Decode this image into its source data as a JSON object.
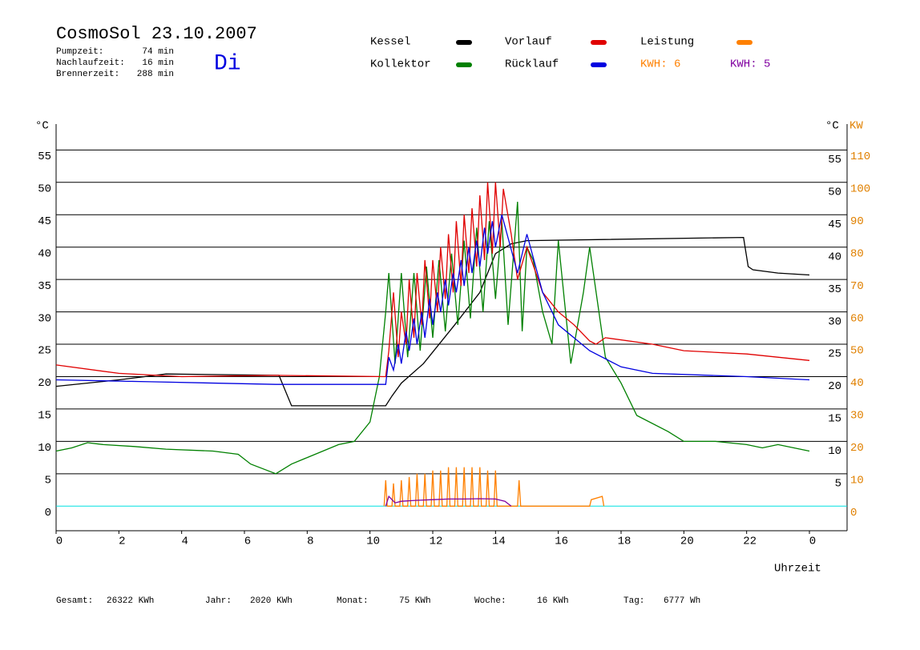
{
  "header": {
    "title": "CosmoSol 23.10.2007",
    "day": "Di",
    "stats": [
      {
        "label": "Pumpzeit:",
        "value": "74 min"
      },
      {
        "label": "Nachlaufzeit:",
        "value": "16 min"
      },
      {
        "label": "Brennerzeit:",
        "value": "288 min"
      }
    ]
  },
  "footer": [
    {
      "label": "Gesamt:",
      "value": "26322 KWh"
    },
    {
      "label": "Jahr:",
      "value": "2020 KWh"
    },
    {
      "label": "Monat:",
      "value": "75 KWh"
    },
    {
      "label": "Woche:",
      "value": "16 KWh"
    },
    {
      "label": "Tag:",
      "value": "6777 Wh"
    }
  ],
  "chart_data": {
    "type": "line",
    "y_unit_left": "°C",
    "y_unit_right": "°C",
    "y2_unit": "KW",
    "xlabel": "Uhrzeit",
    "xlim": [
      0,
      25.2
    ],
    "xticks": [
      0,
      2,
      4,
      6,
      8,
      10,
      12,
      14,
      16,
      18,
      20,
      22,
      {
        "value": 24,
        "label": "0"
      }
    ],
    "ylim": [
      -3.8,
      59
    ],
    "yticks": [
      0,
      5,
      10,
      15,
      20,
      25,
      30,
      35,
      40,
      45,
      50,
      55
    ],
    "y_right_ticks": [
      5,
      10,
      15,
      20,
      25,
      30,
      35,
      40,
      45,
      50,
      55
    ],
    "y2lim": [
      -7.6,
      118
    ],
    "y2ticks": [
      0,
      10,
      20,
      30,
      40,
      50,
      60,
      70,
      80,
      90,
      100,
      110
    ],
    "grid": true,
    "baseline_color": "#00e0e0",
    "series": [
      {
        "name": "Kessel",
        "color": "#000000",
        "x": [
          0,
          2,
          3.5,
          7.1,
          7.5,
          10.5,
          10.7,
          11,
          11.7,
          12.7,
          13.5,
          14,
          14.5,
          15,
          21.9,
          22.05,
          22.2,
          23,
          24
        ],
        "values": [
          18.5,
          19.5,
          20.4,
          20.2,
          15.5,
          15.5,
          17,
          19,
          22,
          28,
          33,
          39,
          40.5,
          41,
          41.5,
          37,
          36.5,
          36,
          35.7
        ]
      },
      {
        "name": "Kollektor",
        "color": "#008000",
        "x": [
          0,
          0.5,
          1,
          1.5,
          2.5,
          3.5,
          5,
          5.8,
          6.2,
          7,
          7.5,
          8,
          9,
          9.5,
          10,
          10.3,
          10.5,
          10.6,
          10.8,
          11,
          11.2,
          11.4,
          11.6,
          11.8,
          12,
          12.2,
          12.4,
          12.6,
          12.8,
          13,
          13.2,
          13.4,
          13.6,
          13.8,
          14,
          14.2,
          14.4,
          14.7,
          14.85,
          15,
          15.2,
          15.5,
          15.8,
          16,
          16.4,
          16.8,
          17,
          17.5,
          18,
          18.5,
          19.5,
          20,
          21,
          22,
          22.5,
          23,
          24
        ],
        "values": [
          8.5,
          9,
          9.8,
          9.5,
          9.2,
          8.8,
          8.5,
          8,
          6.5,
          5,
          6.5,
          7.5,
          9.5,
          10,
          13,
          20,
          30,
          36,
          22,
          36,
          23,
          36,
          24,
          37,
          26,
          38,
          27,
          39,
          28,
          41,
          29,
          43,
          30,
          44,
          32,
          44,
          28,
          47,
          27,
          40,
          38,
          30,
          25,
          41,
          22,
          33,
          40,
          23,
          19,
          14,
          11.5,
          10,
          10,
          9.5,
          9,
          9.5,
          8.5
        ]
      },
      {
        "name": "Vorlauf",
        "color": "#e00000",
        "x": [
          0,
          2,
          4,
          7,
          10.5,
          10.6,
          10.75,
          10.9,
          11,
          11.15,
          11.25,
          11.4,
          11.5,
          11.65,
          11.75,
          11.9,
          12,
          12.15,
          12.25,
          12.4,
          12.5,
          12.65,
          12.75,
          12.9,
          13,
          13.15,
          13.25,
          13.4,
          13.5,
          13.65,
          13.75,
          13.9,
          14,
          14.15,
          14.25,
          14.5,
          14.7,
          15,
          15.5,
          16,
          16.5,
          17,
          17.2,
          17.5,
          19,
          20,
          22,
          24
        ],
        "values": [
          21.8,
          20.5,
          20,
          20.2,
          20,
          24,
          33,
          23,
          30,
          25,
          35,
          26,
          36,
          28,
          38,
          29,
          38,
          30,
          40,
          32,
          42,
          33,
          44,
          34,
          45,
          36,
          46,
          37,
          48,
          38,
          50,
          39,
          50,
          40,
          49,
          42,
          35,
          40,
          33,
          30,
          28,
          25.5,
          25,
          26,
          25,
          24,
          23.5,
          22.5
        ]
      },
      {
        "name": "Rücklauf",
        "color": "#0000e0",
        "x": [
          0,
          3,
          7,
          10.5,
          10.6,
          10.75,
          10.9,
          11,
          11.15,
          11.25,
          11.4,
          11.5,
          11.65,
          11.75,
          11.9,
          12,
          12.15,
          12.25,
          12.4,
          12.5,
          12.65,
          12.75,
          12.9,
          13,
          13.15,
          13.25,
          13.4,
          13.5,
          13.65,
          13.75,
          13.9,
          14,
          14.2,
          14.7,
          15,
          15.5,
          16,
          17,
          18,
          19,
          22,
          24
        ],
        "values": [
          19.5,
          19.2,
          18.8,
          18.8,
          23,
          21,
          25,
          22,
          27,
          24,
          29,
          25,
          30,
          26,
          32,
          28,
          33,
          30,
          35,
          31,
          36,
          33,
          38,
          34,
          40,
          36,
          41,
          37,
          43,
          39,
          44,
          40,
          45,
          36,
          42,
          33,
          28,
          24,
          21.5,
          20.5,
          20,
          19.5
        ]
      },
      {
        "name": "Leistung",
        "kwh_label": "KWH: 6",
        "color": "#ff8000",
        "axis": "y2",
        "x": [
          10.45,
          10.5,
          10.55,
          10.7,
          10.75,
          10.8,
          10.95,
          11,
          11.05,
          11.2,
          11.25,
          11.3,
          11.45,
          11.5,
          11.55,
          11.7,
          11.75,
          11.8,
          11.95,
          12,
          12.05,
          12.2,
          12.25,
          12.3,
          12.45,
          12.5,
          12.55,
          12.7,
          12.75,
          12.8,
          12.95,
          13,
          13.05,
          13.2,
          13.25,
          13.3,
          13.45,
          13.5,
          13.55,
          13.7,
          13.75,
          13.8,
          13.95,
          14,
          14.05,
          14.7,
          14.75,
          14.8,
          17.0,
          17.05,
          17.4,
          17.45
        ],
        "values": [
          0,
          8,
          0,
          0,
          7,
          0,
          0,
          8,
          0,
          0,
          9,
          0,
          0,
          10,
          0,
          0,
          10,
          0,
          0,
          11,
          0,
          0,
          11,
          0,
          0,
          12,
          0,
          0,
          12,
          0,
          0,
          12,
          0,
          0,
          12,
          0,
          0,
          12,
          0,
          0,
          11,
          0,
          0,
          11,
          0,
          0,
          8,
          0,
          0,
          2,
          3,
          0
        ]
      },
      {
        "name": "KWH: 5",
        "color": "#8000a0",
        "axis": "y2",
        "x": [
          10.5,
          10.6,
          10.8,
          11,
          11.5,
          12,
          12.5,
          13,
          13.5,
          14,
          14.3,
          14.5
        ],
        "values": [
          0,
          3,
          1,
          1.5,
          1.8,
          2,
          2.2,
          2.2,
          2.3,
          2.2,
          1.5,
          0
        ]
      }
    ]
  }
}
